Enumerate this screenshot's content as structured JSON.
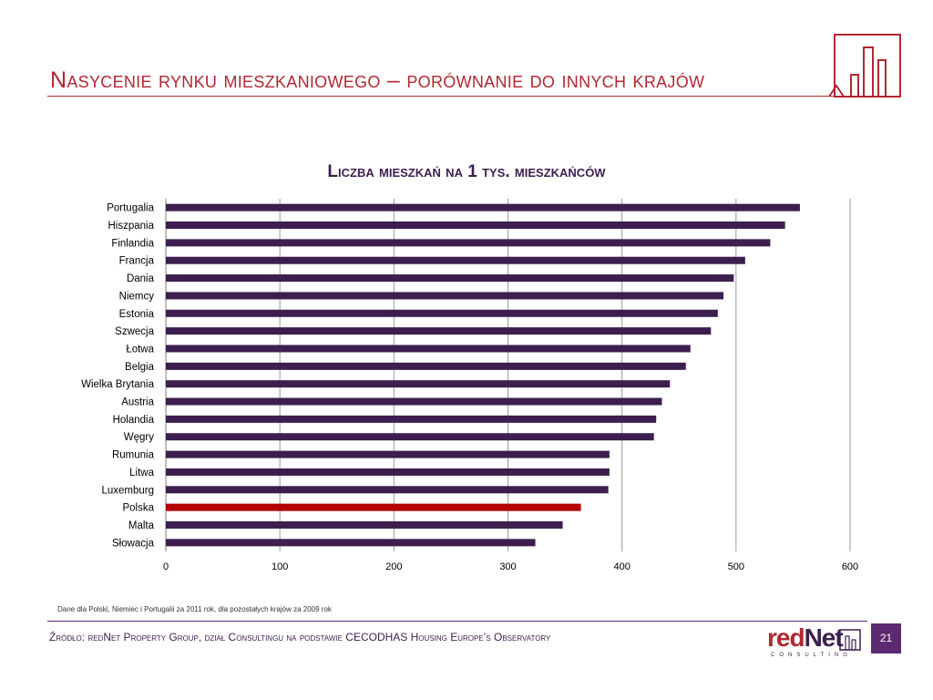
{
  "slide": {
    "title": "Nasycenie rynku mieszkaniowego – porównanie do innych krajów",
    "note": "Dane dla Polski, Niemiec i Portugalii  za 2011 rok, dla pozostałych krajów za 2009 rok",
    "source": "Źródło: redNet Property Group, dział Consultingu na podstawie CECODHAS Housing Europe’s Observatory",
    "page_number": "21",
    "brand": {
      "name_red": "red",
      "name_dark": "Net",
      "sub": "CONSULTING"
    }
  },
  "colors": {
    "accent": "#b32731",
    "bar": "#3c1e4f",
    "highlight_bar": "#b30000",
    "grid": "#9a9a9a"
  },
  "chart_data": {
    "type": "bar",
    "orientation": "horizontal",
    "title": "Liczba mieszkań na 1 tys. mieszkańców",
    "xlabel": "",
    "ylabel": "",
    "xlim": [
      0,
      600
    ],
    "xticks": [
      0,
      100,
      200,
      300,
      400,
      500,
      600
    ],
    "grid": true,
    "highlight": "Polska",
    "categories": [
      "Portugalia",
      "Hiszpania",
      "Finlandia",
      "Francja",
      "Dania",
      "Niemcy",
      "Estonia",
      "Szwecja",
      "Łotwa",
      "Belgia",
      "Wielka Brytania",
      "Austria",
      "Holandia",
      "Węgry",
      "Rumunia",
      "Litwa",
      "Luxemburg",
      "Polska",
      "Malta",
      "Słowacja"
    ],
    "values": [
      556,
      543,
      530,
      508,
      498,
      489,
      484,
      478,
      460,
      456,
      442,
      435,
      430,
      428,
      389,
      389,
      388,
      364,
      348,
      324
    ]
  }
}
